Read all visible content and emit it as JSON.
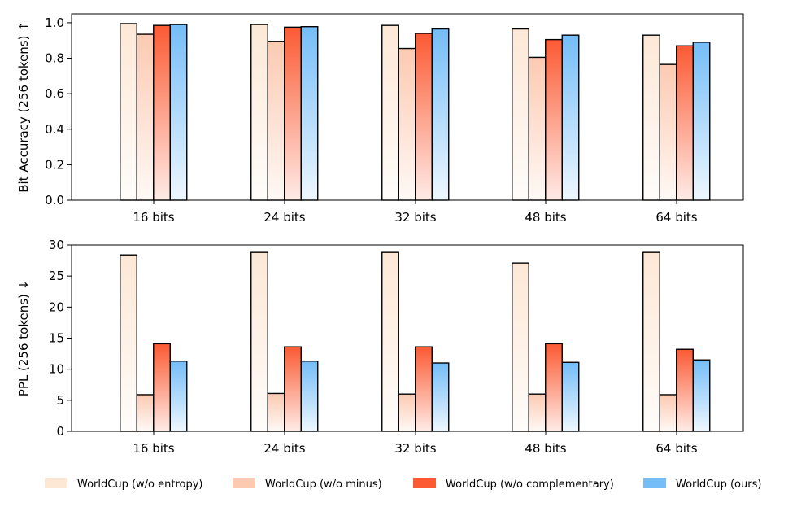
{
  "chart_data": [
    {
      "type": "bar",
      "title": "",
      "xlabel": "",
      "ylabel": "Bit Accuracy (256 tokens)",
      "direction_marker": "↑",
      "categories": [
        "16 bits",
        "24 bits",
        "32 bits",
        "48 bits",
        "64 bits"
      ],
      "ylim": [
        0,
        1.05
      ],
      "yticks": [
        "0.0",
        "0.2",
        "0.4",
        "0.6",
        "0.8",
        "1.0"
      ],
      "ytick_values": [
        0.0,
        0.2,
        0.4,
        0.6,
        0.8,
        1.0
      ],
      "series": [
        {
          "name": "WorldCup (w/o entropy)",
          "values": [
            0.995,
            0.99,
            0.985,
            0.965,
            0.93
          ]
        },
        {
          "name": "WorldCup (w/o minus)",
          "values": [
            0.935,
            0.895,
            0.855,
            0.805,
            0.765
          ]
        },
        {
          "name": "WorldCup (w/o complementary)",
          "values": [
            0.985,
            0.975,
            0.94,
            0.905,
            0.87
          ]
        },
        {
          "name": "WorldCup (ours)",
          "values": [
            0.99,
            0.978,
            0.965,
            0.93,
            0.89
          ]
        }
      ]
    },
    {
      "type": "bar",
      "title": "",
      "xlabel": "",
      "ylabel": "PPL (256 tokens)",
      "direction_marker": "↓",
      "categories": [
        "16 bits",
        "24 bits",
        "32 bits",
        "48 bits",
        "64 bits"
      ],
      "ylim": [
        0,
        30
      ],
      "yticks": [
        "0",
        "5",
        "10",
        "15",
        "20",
        "25",
        "30"
      ],
      "ytick_values": [
        0,
        5,
        10,
        15,
        20,
        25,
        30
      ],
      "series": [
        {
          "name": "WorldCup (w/o entropy)",
          "values": [
            28.4,
            28.8,
            28.8,
            27.1,
            28.8
          ]
        },
        {
          "name": "WorldCup (w/o minus)",
          "values": [
            5.9,
            6.1,
            6.0,
            6.0,
            5.9
          ]
        },
        {
          "name": "WorldCup (w/o complementary)",
          "values": [
            14.1,
            13.6,
            13.6,
            14.1,
            13.2
          ]
        },
        {
          "name": "WorldCup (ours)",
          "values": [
            11.3,
            11.3,
            11.0,
            11.1,
            11.5
          ]
        }
      ]
    }
  ],
  "legend": {
    "placement": "bottom",
    "items": [
      {
        "label": "WorldCup (w/o entropy)",
        "color": "#fde8d6"
      },
      {
        "label": "WorldCup (w/o minus)",
        "color": "#fccab1"
      },
      {
        "label": "WorldCup (w/o complementary)",
        "color": "#fb5a33"
      },
      {
        "label": "WorldCup (ours)",
        "color": "#74bdf8"
      }
    ]
  },
  "series_colors": [
    "#fde8d6",
    "#fccab1",
    "#fb5a33",
    "#74bdf8"
  ]
}
